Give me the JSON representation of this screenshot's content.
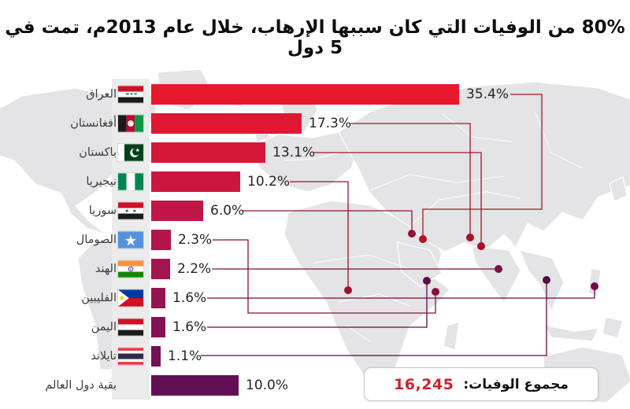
{
  "title": "80% من الوفيات التي كان سببها الإرهاب، خلال عام 2013م، تمت في 5 دول",
  "total": {
    "label": "مجموع الوفيات:",
    "value": "16,245",
    "value_color": "#d11f2f"
  },
  "chart_data": {
    "type": "bar",
    "orientation": "horizontal",
    "title": "80% من الوفيات التي كان سببها الإرهاب، خلال عام 2013م، تمت في 5 دول",
    "categories": [
      "العراق",
      "أفغانستان",
      "باكستان",
      "نيجيريا",
      "سوريا",
      "الصومال",
      "الهند",
      "الفليبين",
      "اليمن",
      "تايلاند",
      "بقية دول العالم"
    ],
    "categories_en": [
      "Iraq",
      "Afghanistan",
      "Pakistan",
      "Nigeria",
      "Syria",
      "Somalia",
      "India",
      "Philippines",
      "Yemen",
      "Thailand",
      "Rest of world"
    ],
    "values": [
      35.4,
      17.3,
      13.1,
      10.2,
      6.0,
      2.3,
      2.2,
      1.6,
      1.6,
      1.1,
      10.0
    ],
    "value_labels": [
      "35.4%",
      "17.3%",
      "13.1%",
      "10.2%",
      "6.0%",
      "2.3%",
      "2.2%",
      "1.6%",
      "1.6%",
      "1.1%",
      "10.0%"
    ],
    "xlim": [
      0,
      36
    ],
    "grid": false,
    "legend": false,
    "color_scheme": "red-to-purple gradient top to bottom",
    "total_label": "مجموع الوفيات:",
    "total_value": "16,245"
  },
  "rows": [
    {
      "country": "iraq",
      "label": "العراق",
      "pct_label": "35.4%",
      "value": 35.4,
      "bar_color": "#e8182e",
      "line_color": "#b51123",
      "flag": "iraq",
      "dot": {
        "x": 537,
        "y": 304
      },
      "route": [
        [
          648,
          120
        ],
        [
          688,
          120
        ],
        [
          688,
          266
        ],
        [
          537,
          266
        ],
        [
          537,
          304
        ]
      ]
    },
    {
      "country": "afghanistan",
      "label": "أفغانستان",
      "pct_label": "17.3%",
      "value": 17.3,
      "bar_color": "#df1834",
      "line_color": "#ae1129",
      "flag": "afghanistan",
      "dot": {
        "x": 597,
        "y": 302
      },
      "route": [
        [
          444,
          157
        ],
        [
          597,
          157
        ],
        [
          597,
          302
        ]
      ]
    },
    {
      "country": "pakistan",
      "label": "باكستان",
      "pct_label": "13.1%",
      "value": 13.1,
      "bar_color": "#d51839",
      "line_color": "#a6112f",
      "flag": "pakistan",
      "dot": {
        "x": 611,
        "y": 313
      },
      "route": [
        [
          398,
          194
        ],
        [
          611,
          194
        ],
        [
          611,
          313
        ]
      ]
    },
    {
      "country": "nigeria",
      "label": "نيجيريا",
      "pct_label": "10.2%",
      "value": 10.2,
      "bar_color": "#cb1740",
      "line_color": "#9c1035",
      "flag": "nigeria",
      "dot": {
        "x": 442,
        "y": 369
      },
      "route": [
        [
          368,
          231
        ],
        [
          442,
          231
        ],
        [
          442,
          369
        ]
      ]
    },
    {
      "country": "syria",
      "label": "سوريا",
      "pct_label": "6.0%",
      "value": 6.0,
      "bar_color": "#c01646",
      "line_color": "#92103a",
      "flag": "syria",
      "dot": {
        "x": 523,
        "y": 297
      },
      "route": [
        [
          308,
          268
        ],
        [
          523,
          268
        ],
        [
          523,
          297
        ]
      ]
    },
    {
      "country": "somalia",
      "label": "الصومال",
      "pct_label": "2.3%",
      "value": 2.3,
      "bar_color": "#b3154b",
      "line_color": "#870f3e",
      "flag": "somalia",
      "dot": {
        "x": 553,
        "y": 371
      },
      "route": [
        [
          270,
          305
        ],
        [
          315,
          305
        ],
        [
          315,
          398
        ],
        [
          553,
          398
        ],
        [
          553,
          371
        ]
      ]
    },
    {
      "country": "india",
      "label": "الهند",
      "pct_label": "2.2%",
      "value": 2.2,
      "bar_color": "#a4144e",
      "line_color": "#7b0e41",
      "flag": "india",
      "dot": {
        "x": 633,
        "y": 342
      },
      "route": [
        [
          269,
          342
        ],
        [
          633,
          342
        ]
      ]
    },
    {
      "country": "philippines",
      "label": "الفليبين",
      "pct_label": "1.6%",
      "value": 1.6,
      "bar_color": "#951351",
      "line_color": "#6f0d43",
      "flag": "philippines",
      "dot": {
        "x": 755,
        "y": 364
      },
      "route": [
        [
          263,
          379
        ],
        [
          755,
          379
        ],
        [
          755,
          364
        ]
      ]
    },
    {
      "country": "yemen",
      "label": "اليمن",
      "pct_label": "1.6%",
      "value": 1.6,
      "bar_color": "#851254",
      "line_color": "#630c44",
      "flag": "yemen",
      "dot": {
        "x": 542,
        "y": 357
      },
      "route": [
        [
          263,
          416
        ],
        [
          542,
          416
        ],
        [
          542,
          357
        ]
      ]
    },
    {
      "country": "thailand",
      "label": "تايلاند",
      "pct_label": "1.1%",
      "value": 1.1,
      "bar_color": "#741056",
      "line_color": "#560b44",
      "flag": "thailand",
      "dot": {
        "x": 694,
        "y": 356
      },
      "route": [
        [
          255,
          452
        ],
        [
          694,
          452
        ],
        [
          694,
          356
        ]
      ]
    },
    {
      "country": "rest-of-world",
      "label": "بقية دول العالم",
      "pct_label": "10.0%",
      "value": 10.0,
      "bar_color": "#630f55",
      "line_color": null,
      "flag": null,
      "dot": null,
      "route": null
    }
  ]
}
